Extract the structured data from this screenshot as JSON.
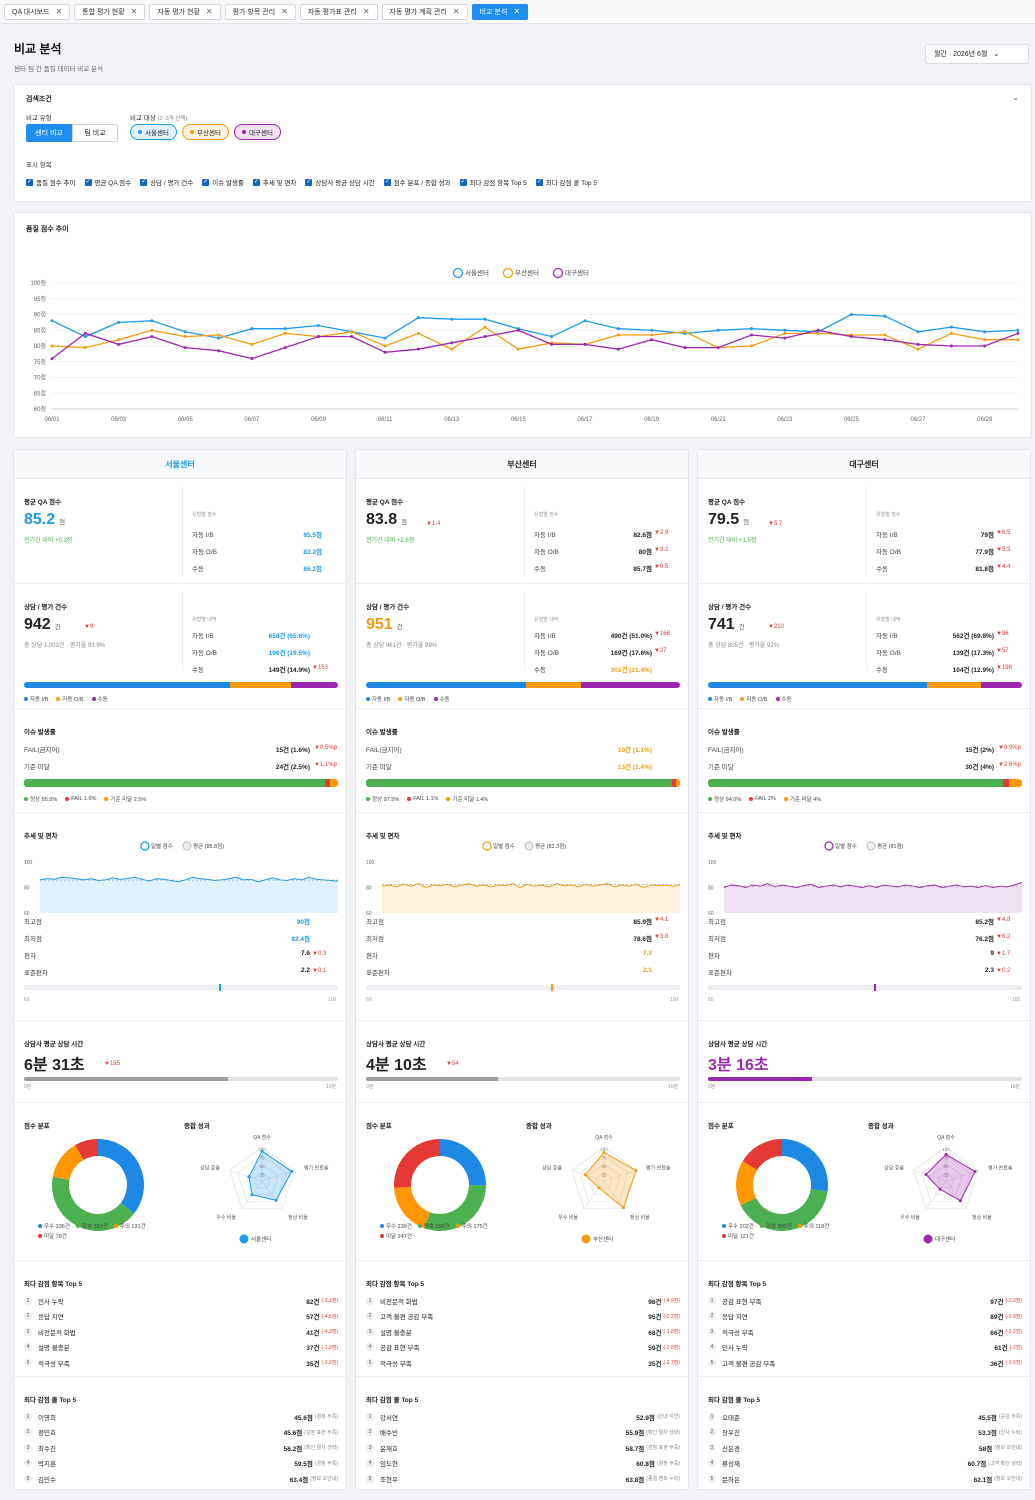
{
  "tabs": [
    "QA 대시보드",
    "통합 평가 현황",
    "자동 평가 현황",
    "평가 항목 관리",
    "자동 평가표 관리",
    "자동 평가 계획 관리",
    "비교 분석"
  ],
  "page": {
    "title": "비교 분석",
    "subtitle": "센터·팀 간 품질 데이터 비교 분석",
    "period": "월간 · 2026년 6월"
  },
  "search": {
    "title": "검색조건",
    "type_label": "비교 유형",
    "type_center": "센터 비교",
    "type_team": "팀 비교",
    "target_label": "비교 대상",
    "target_hint": "(2~3개 선택)",
    "targets": [
      "서울센터",
      "부산센터",
      "대구센터"
    ],
    "display_label": "표시 항목",
    "display_items": [
      "품질 점수 추이",
      "평균 QA 점수",
      "상담 / 평가 건수",
      "이슈 발생률",
      "추세 및 편차",
      "상담사 평균 상담 시간",
      "점수 분포 / 종합 성과",
      "최다 감점 항목 Top 5",
      "최다 감점 콜 Top 5"
    ]
  },
  "colors": {
    "seoul": "#1e9be9",
    "busan": "#f39c12",
    "daegu": "#9c27b0",
    "auto_ib": "#1e88e5",
    "auto_ob": "#f39c12",
    "manual": "#9c27b0",
    "good": "#4caf50",
    "fail": "#e53935",
    "below": "#ff9800"
  },
  "chart_data": {
    "type": "line",
    "title": "품질 점수 추이",
    "yticks": [
      "100점",
      "95점",
      "90점",
      "85점",
      "80점",
      "75점",
      "70점",
      "65점",
      "60점"
    ],
    "ylim": [
      60,
      100
    ],
    "x": [
      "06/01",
      "06/02",
      "06/03",
      "06/04",
      "06/05",
      "06/06",
      "06/07",
      "06/08",
      "06/09",
      "06/10",
      "06/11",
      "06/12",
      "06/13",
      "06/14",
      "06/15",
      "06/16",
      "06/17",
      "06/18",
      "06/19",
      "06/20",
      "06/21",
      "06/22",
      "06/23",
      "06/24",
      "06/25",
      "06/26",
      "06/27",
      "06/28",
      "06/29",
      "06/30"
    ],
    "xticks": [
      "06/01",
      "06/03",
      "06/05",
      "06/07",
      "06/09",
      "06/11",
      "06/13",
      "06/15",
      "06/17",
      "06/19",
      "06/21",
      "06/23",
      "06/25",
      "06/27",
      "06/29"
    ],
    "series": [
      {
        "name": "서울센터",
        "values": [
          88,
          83,
          87.5,
          88,
          84.5,
          82.5,
          85.5,
          85.5,
          86.5,
          84.5,
          82.5,
          89,
          88.5,
          88.5,
          85.5,
          83,
          88,
          85.5,
          85,
          84,
          85,
          85.5,
          85,
          84.5,
          90,
          89.5,
          84.5,
          86,
          84.5,
          85
        ]
      },
      {
        "name": "부산센터",
        "values": [
          80,
          79.5,
          82,
          85,
          83,
          83.5,
          80.5,
          84,
          83,
          84.5,
          80,
          84,
          79,
          86,
          79,
          81,
          80.5,
          83.5,
          83.5,
          84.5,
          79.5,
          80,
          84,
          84,
          83.5,
          83.5,
          79,
          84,
          82,
          82
        ]
      },
      {
        "name": "대구센터",
        "values": [
          76,
          84,
          80.5,
          83,
          79.5,
          78.5,
          76,
          79.5,
          83,
          83,
          78,
          79,
          81,
          83,
          85,
          80.5,
          80.5,
          79,
          82,
          79.5,
          79.5,
          83.5,
          82.5,
          85,
          83,
          82,
          80.5,
          80,
          80,
          84
        ]
      }
    ]
  },
  "centers": [
    {
      "name": "서울센터",
      "key": "seoul",
      "qa": {
        "label": "평균 QA 점수",
        "value": "85.2",
        "unit": "점",
        "delta": "",
        "compare": "전기간 대비 +0.3점",
        "type_label": "유형별 점수",
        "rows": [
          {
            "k": "자동 I/B",
            "v": "85.5점",
            "d": ""
          },
          {
            "k": "자동 O/B",
            "v": "83.2점",
            "d": ""
          },
          {
            "k": "수동",
            "v": "86.2점",
            "d": ""
          }
        ]
      },
      "count": {
        "label": "상담 / 평가 건수",
        "value": "942",
        "unit": "건",
        "delta": "▼9",
        "sub": "총 상담 1,003건 · 평가율 93.9%",
        "type_label": "유형별 내역",
        "rows": [
          {
            "k": "자동 I/B",
            "v": "658건 (65.6%)",
            "d": ""
          },
          {
            "k": "자동 O/B",
            "v": "196건 (19.5%)",
            "d": ""
          },
          {
            "k": "수동",
            "v": "149건 (14.9%)",
            "d": "▼153"
          }
        ],
        "share": [
          65.6,
          19.5,
          14.9
        ],
        "legend": [
          "자동 I/B",
          "자동 O/B",
          "수동"
        ]
      },
      "issue": {
        "label": "이슈 발생률",
        "rows": [
          {
            "k": "FAIL(금지어)",
            "v": "15건 (1.6%)",
            "d": "▼0.5%p"
          },
          {
            "k": "기준 미달",
            "v": "24건 (2.5%)",
            "d": "▼1.1%p"
          }
        ],
        "share": [
          95.9,
          1.6,
          2.5
        ],
        "legend": [
          "정상 95.9%",
          "FAIL 1.6%",
          "기준 미달 2.5%"
        ]
      },
      "dev": {
        "label": "추세 및 편차",
        "legend": [
          "일별 점수",
          "평균 (85.8점)"
        ],
        "avg": 85.8,
        "yticks": [
          "100",
          "80",
          "60"
        ],
        "series": [
          86,
          87,
          86.5,
          88,
          87.5,
          87,
          86,
          87,
          85.5,
          86,
          87.5,
          86.5,
          87,
          88,
          86.5,
          85,
          87,
          86.5,
          85.5,
          84.5,
          86,
          88,
          87,
          86.5,
          85.5,
          86,
          87,
          88,
          86,
          86.5,
          84.5,
          86,
          87.5,
          86,
          85.5,
          87,
          86,
          88,
          86.5,
          86,
          85.5,
          85
        ],
        "rows": [
          {
            "k": "최고점",
            "v": "90점",
            "d": ""
          },
          {
            "k": "최저점",
            "v": "82.4점",
            "d": ""
          },
          {
            "k": "편차",
            "v": "7.6",
            "d": "▼0.3"
          },
          {
            "k": "표준편차",
            "v": "2.2",
            "d": "▼0.1"
          }
        ],
        "marker": 0.62,
        "scale": [
          "60",
          "100"
        ]
      },
      "time": {
        "label": "상담사 평균 상담 시간",
        "value": "6분 31초",
        "delta": "▼195",
        "fill": 0.65,
        "scale": [
          "0분",
          "10분"
        ]
      },
      "dist": {
        "label": "점수 분포",
        "values": [
          336,
          397,
          131,
          78
        ],
        "legend": [
          "우수 336건",
          "양호 397건",
          "주의 131건",
          "미달 78건"
        ]
      },
      "radar": {
        "label": "종합 성과",
        "axes": [
          "QA 점수",
          "평가 완료율",
          "정상 비율",
          "우수 비율",
          "상담 효율"
        ],
        "values": [
          88,
          92,
          70,
          50,
          40
        ],
        "ticks": [
          "100",
          "75",
          "50",
          "25"
        ],
        "legend": "서울센터"
      },
      "items": {
        "label": "최다 감점 항목 Top 5",
        "rows": [
          {
            "n": "인사 누락",
            "v": "82건",
            "d": "(-3.1점)"
          },
          {
            "n": "응답 지연",
            "v": "57건",
            "d": "(-4.5점)"
          },
          {
            "n": "비전문적 화법",
            "v": "41건",
            "d": "(-4.3점)"
          },
          {
            "n": "설명 불충분",
            "v": "37건",
            "d": "(-1.9점)"
          },
          {
            "n": "적극성 부족",
            "v": "35건",
            "d": "(-3.9점)"
          }
        ]
      },
      "calls": {
        "label": "최다 감점 콜 Top 5",
        "rows": [
          {
            "n": "이영희",
            "v": "45.6점",
            "d": "(경청 부족)"
          },
          {
            "n": "정민호",
            "v": "45.6점",
            "d": "(감정 표현 부족)"
          },
          {
            "n": "최수진",
            "v": "56.2점",
            "d": "(확인 절차 생략)"
          },
          {
            "n": "박지훈",
            "v": "59.5점",
            "d": "(경청 부족)"
          },
          {
            "n": "김민수",
            "v": "63.4점",
            "d": "(정보 오안내)"
          }
        ]
      }
    },
    {
      "name": "부산센터",
      "key": "busan",
      "qa": {
        "label": "평균 QA 점수",
        "value": "83.8",
        "unit": "점",
        "delta": "▼1.4",
        "compare": "전기간 대비 +2.6점",
        "type_label": "유형별 점수",
        "rows": [
          {
            "k": "자동 I/B",
            "v": "82.6점",
            "d": "▼2.9"
          },
          {
            "k": "자동 O/B",
            "v": "80점",
            "d": "▼3.2"
          },
          {
            "k": "수동",
            "v": "85.7점",
            "d": "▼0.5"
          }
        ]
      },
      "count": {
        "label": "상담 / 평가 건수",
        "value": "951",
        "unit": "건",
        "delta": "",
        "sub": "총 상담 961건 · 평가율 99%",
        "type_label": "유형별 내역",
        "rows": [
          {
            "k": "자동 I/B",
            "v": "490건 (51.0%)",
            "d": "▼168"
          },
          {
            "k": "자동 O/B",
            "v": "169건 (17.6%)",
            "d": "▼27"
          },
          {
            "k": "수동",
            "v": "302건 (31.4%)",
            "d": ""
          }
        ],
        "share": [
          51,
          17.6,
          31.4
        ],
        "legend": [
          "자동 I/B",
          "자동 O/B",
          "수동"
        ]
      },
      "issue": {
        "label": "이슈 발생률",
        "rows": [
          {
            "k": "FAIL(금지어)",
            "v": "10건 (1.1%)",
            "d": ""
          },
          {
            "k": "기준 미달",
            "v": "13건 (1.4%)",
            "d": ""
          }
        ],
        "share": [
          97.5,
          1.1,
          1.4
        ],
        "legend": [
          "정상 97.5%",
          "FAIL 1.1%",
          "기준 미달 1.4%"
        ]
      },
      "dev": {
        "label": "추세 및 편차",
        "legend": [
          "일별 점수",
          "평균 (82.3점)"
        ],
        "avg": 82.3,
        "yticks": [
          "100",
          "80",
          "60"
        ],
        "series": [
          81,
          82,
          80.5,
          82.5,
          81,
          83,
          80,
          82,
          81.5,
          82.5,
          80.5,
          82,
          83,
          81,
          82,
          80.5,
          82,
          81.5,
          83,
          80,
          82.5,
          81,
          82,
          80.5,
          83,
          81.5,
          82,
          80.5,
          82.5,
          81,
          82,
          83,
          80.5,
          82,
          81,
          82.5,
          80,
          82,
          81.5,
          82,
          81,
          82
        ],
        "rows": [
          {
            "k": "최고점",
            "v": "85.9점",
            "d": "▼4.1"
          },
          {
            "k": "최저점",
            "v": "78.6점",
            "d": "▼3.8"
          },
          {
            "k": "편차",
            "v": "7.3",
            "d": ""
          },
          {
            "k": "표준편차",
            "v": "2.1",
            "d": ""
          }
        ],
        "marker": 0.59,
        "scale": [
          "60",
          "100"
        ]
      },
      "time": {
        "label": "상담사 평균 상담 시간",
        "value": "4분 10초",
        "delta": "▼54",
        "fill": 0.42,
        "scale": [
          "0분",
          "10분"
        ]
      },
      "dist": {
        "label": "점수 분포",
        "values": [
          239,
          290,
          175,
          247
        ],
        "legend": [
          "우수 239건",
          "양호 290건",
          "주의 175건",
          "미달 247건"
        ]
      },
      "radar": {
        "label": "종합 성과",
        "axes": [
          "QA 점수",
          "평가 완료율",
          "정상 비율",
          "우수 비율",
          "상담 효율"
        ],
        "values": [
          84,
          99,
          97,
          25,
          58
        ],
        "ticks": [
          "100",
          "75",
          "50",
          "25"
        ],
        "legend": "부산센터"
      },
      "items": {
        "label": "최다 감점 항목 Top 5",
        "rows": [
          {
            "n": "비전문적 화법",
            "v": "98건",
            "d": "(-4.9점)"
          },
          {
            "n": "고객 불편 공감 부족",
            "v": "95건",
            "d": "(-2.2점)"
          },
          {
            "n": "설명 불충분",
            "v": "68건",
            "d": "(-1.8점)"
          },
          {
            "n": "공감 표현 부족",
            "v": "59건",
            "d": "(-2.8점)"
          },
          {
            "n": "적극성 부족",
            "v": "35건",
            "d": "(-2.7점)"
          }
        ]
      },
      "calls": {
        "label": "최다 감점 콜 Top 5",
        "rows": [
          {
            "n": "강서연",
            "v": "52.9점",
            "d": "(안내 지연)"
          },
          {
            "n": "배수빈",
            "v": "55.9점",
            "d": "(확인 절차 생략)"
          },
          {
            "n": "윤재호",
            "v": "58.7점",
            "d": "(감정 표현 부족)"
          },
          {
            "n": "임도현",
            "v": "60.8점",
            "d": "(경청 부족)"
          },
          {
            "n": "조현우",
            "v": "63.8점",
            "d": "(종결 멘트 누락)"
          }
        ]
      }
    },
    {
      "name": "대구센터",
      "key": "daegu",
      "qa": {
        "label": "평균 QA 점수",
        "value": "79.5",
        "unit": "점",
        "delta": "▼5.7",
        "compare": "전기간 대비 +1.5점",
        "type_label": "유형별 점수",
        "rows": [
          {
            "k": "자동 I/B",
            "v": "79점",
            "d": "▼6.5"
          },
          {
            "k": "자동 O/B",
            "v": "77.9점",
            "d": "▼5.3"
          },
          {
            "k": "수동",
            "v": "81.8점",
            "d": "▼4.4"
          }
        ]
      },
      "count": {
        "label": "상담 / 평가 건수",
        "value": "741",
        "unit": "건",
        "delta": "▼210",
        "sub": "총 상담 805건 · 평가율 92%",
        "type_label": "유형별 내역",
        "rows": [
          {
            "k": "자동 I/B",
            "v": "562건 (69.8%)",
            "d": "▼96"
          },
          {
            "k": "자동 O/B",
            "v": "139건 (17.3%)",
            "d": "▼57"
          },
          {
            "k": "수동",
            "v": "104건 (12.9%)",
            "d": "▼198"
          }
        ],
        "share": [
          69.8,
          17.3,
          12.9
        ],
        "legend": [
          "자동 I/B",
          "자동 O/B",
          "수동"
        ]
      },
      "issue": {
        "label": "이슈 발생률",
        "rows": [
          {
            "k": "FAIL(금지어)",
            "v": "15건 (2%)",
            "d": "▼0.9%p"
          },
          {
            "k": "기준 미달",
            "v": "30건 (4%)",
            "d": "▼2.6%p"
          }
        ],
        "share": [
          94,
          2,
          4
        ],
        "legend": [
          "정상 94.0%",
          "FAIL 2%",
          "기준 미달 4%"
        ]
      },
      "dev": {
        "label": "추세 및 편차",
        "legend": [
          "일별 점수",
          "평균 (81점)"
        ],
        "avg": 81,
        "yticks": [
          "100",
          "80",
          "60"
        ],
        "series": [
          80,
          82,
          81.5,
          80,
          82,
          81,
          83,
          80.5,
          82,
          81,
          80,
          81.5,
          82.5,
          80,
          81,
          82,
          80.5,
          82,
          81,
          80,
          81.5,
          80,
          82,
          81,
          80.5,
          82,
          81,
          80,
          81.5,
          82,
          80,
          81,
          82,
          80.5,
          81,
          80,
          81.5,
          80,
          81,
          80.5,
          82,
          84
        ],
        "rows": [
          {
            "k": "최고점",
            "v": "85.2점",
            "d": "▼4.8"
          },
          {
            "k": "최저점",
            "v": "76.2점",
            "d": "▼6.2"
          },
          {
            "k": "편차",
            "v": "9",
            "d": "▼1.7"
          },
          {
            "k": "표준편차",
            "v": "2.3",
            "d": "▼0.2"
          }
        ],
        "marker": 0.53,
        "scale": [
          "60",
          "100"
        ]
      },
      "time": {
        "label": "상담사 평균 상담 시간",
        "value": "3분 16초",
        "delta": "",
        "fill": 0.33,
        "scale": [
          "0분",
          "10분"
        ]
      },
      "dist": {
        "label": "점수 분포",
        "values": [
          202,
          300,
          118,
          121
        ],
        "legend": [
          "우수 202건",
          "양호 300건",
          "주의 118건",
          "미달 121건"
        ]
      },
      "radar": {
        "label": "종합 성과",
        "axes": [
          "QA 점수",
          "평가 완료율",
          "정상 비율",
          "우수 비율",
          "상담 효율"
        ],
        "values": [
          78,
          90,
          72,
          30,
          62
        ],
        "ticks": [
          "100",
          "75",
          "50",
          "25"
        ],
        "legend": "대구센터"
      },
      "items": {
        "label": "최다 감점 항목 Top 5",
        "rows": [
          {
            "n": "공감 표현 부족",
            "v": "97건",
            "d": "(-2.3점)"
          },
          {
            "n": "응답 지연",
            "v": "89건",
            "d": "(-2.8점)"
          },
          {
            "n": "적극성 부족",
            "v": "66건",
            "d": "(-2.2점)"
          },
          {
            "n": "인사 누락",
            "v": "61건",
            "d": "(-2점)"
          },
          {
            "n": "고객 불편 공감 부족",
            "v": "36건",
            "d": "(-3.6점)"
          }
        ]
      },
      "calls": {
        "label": "최다 감점 콜 Top 5",
        "rows": [
          {
            "n": "오태준",
            "v": "45.5점",
            "d": "(공감 부족)"
          },
          {
            "n": "장우진",
            "v": "53.3점",
            "d": "(인사 누락)"
          },
          {
            "n": "신은경",
            "v": "58점",
            "d": "(정보 오안내)"
          },
          {
            "n": "류성재",
            "v": "60.7점",
            "d": "(고객 확인 생략)"
          },
          {
            "n": "문하은",
            "v": "62.1점",
            "d": "(정보 오안내)"
          }
        ]
      }
    }
  ]
}
